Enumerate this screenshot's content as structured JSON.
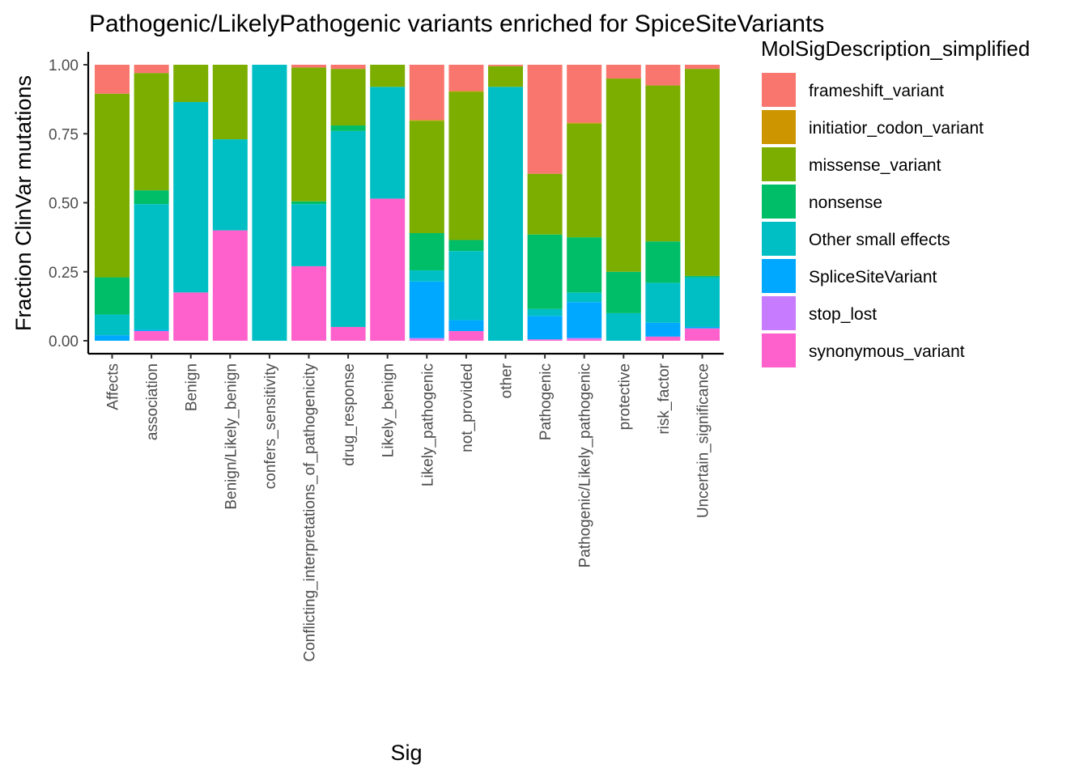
{
  "chart_data": {
    "type": "bar",
    "stacked": true,
    "normalized": true,
    "title": "Pathogenic/LikelyPathogenic variants enriched for SpiceSiteVariants",
    "xlabel": "Sig",
    "ylabel": "Fraction ClinVar mutations",
    "ylim": [
      0,
      1
    ],
    "yticks": [
      "0.00",
      "0.25",
      "0.50",
      "0.75",
      "1.00"
    ],
    "ytick_values": [
      0,
      0.25,
      0.5,
      0.75,
      1
    ],
    "grid": false,
    "legend_title": "MolSigDescription_simplified",
    "legend_position": "right",
    "categories": [
      "Affects",
      "association",
      "Benign",
      "Benign/Likely_benign",
      "confers_sensitivity",
      "Conflicting_interpretations_of_pathogenicity",
      "drug_response",
      "Likely_benign",
      "Likely_pathogenic",
      "not_provided",
      "other",
      "Pathogenic",
      "Pathogenic/Likely_pathogenic",
      "protective",
      "risk_factor",
      "Uncertain_significance"
    ],
    "series": [
      {
        "name": "frameshift_variant",
        "color": "#F8766D",
        "values": [
          0.105,
          0.03,
          0.0,
          0.0,
          0.0,
          0.01,
          0.015,
          0.0,
          0.2,
          0.095,
          0.005,
          0.395,
          0.21,
          0.05,
          0.075,
          0.015
        ]
      },
      {
        "name": "initiatior_codon_variant",
        "color": "#CD9600",
        "values": [
          0.0,
          0.0,
          0.0,
          0.0,
          0.0,
          0.0,
          0.0,
          0.0,
          0.003,
          0.003,
          0.0,
          0.0,
          0.003,
          0.0,
          0.0,
          0.0
        ]
      },
      {
        "name": "missense_variant",
        "color": "#7CAE00",
        "values": [
          0.665,
          0.425,
          0.135,
          0.27,
          0.0,
          0.485,
          0.205,
          0.08,
          0.407,
          0.537,
          0.075,
          0.22,
          0.412,
          0.7,
          0.565,
          0.75
        ]
      },
      {
        "name": "nonsense",
        "color": "#00BE67",
        "values": [
          0.135,
          0.05,
          0.0,
          0.0,
          0.0,
          0.01,
          0.02,
          0.0,
          0.135,
          0.04,
          0.0,
          0.27,
          0.2,
          0.15,
          0.15,
          0.005
        ]
      },
      {
        "name": "Other small effects",
        "color": "#00BFC4",
        "values": [
          0.075,
          0.455,
          0.69,
          0.33,
          1.0,
          0.225,
          0.71,
          0.405,
          0.04,
          0.25,
          0.92,
          0.025,
          0.035,
          0.1,
          0.145,
          0.18
        ]
      },
      {
        "name": "SpliceSiteVariant",
        "color": "#00A9FF",
        "values": [
          0.02,
          0.005,
          0.0,
          0.0,
          0.0,
          0.0,
          0.0,
          0.0,
          0.205,
          0.04,
          0.0,
          0.085,
          0.13,
          0.0,
          0.05,
          0.005
        ]
      },
      {
        "name": "stop_lost",
        "color": "#C77CFF",
        "values": [
          0.0,
          0.0,
          0.0,
          0.0,
          0.0,
          0.0,
          0.0,
          0.0,
          0.005,
          0.0,
          0.0,
          0.0,
          0.005,
          0.0,
          0.0,
          0.0
        ]
      },
      {
        "name": "synonymous_variant",
        "color": "#FF61CC",
        "values": [
          0.0,
          0.035,
          0.175,
          0.4,
          0.0,
          0.27,
          0.05,
          0.515,
          0.005,
          0.035,
          0.0,
          0.005,
          0.005,
          0.0,
          0.015,
          0.045
        ]
      }
    ]
  }
}
